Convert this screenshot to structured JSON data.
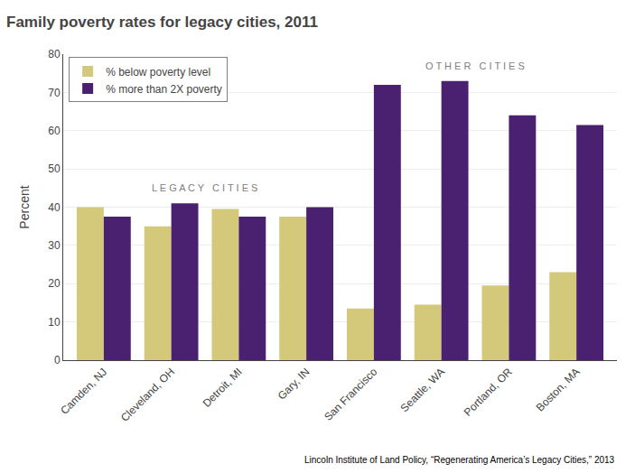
{
  "chart_data": {
    "type": "bar",
    "title": "Family poverty rates for legacy cities, 2011",
    "ylabel": "Percent",
    "categories": [
      "Camden, NJ",
      "Cleveland, OH",
      "Detroit, MI",
      "Gary, IN",
      "San Francisco",
      "Seattle, WA",
      "Portland, OR",
      "Boston, MA"
    ],
    "series": [
      {
        "name": "% below poverty level",
        "color": "#d4c97a",
        "values": [
          40,
          35,
          39.5,
          37.5,
          13.5,
          14.5,
          19.5,
          23
        ]
      },
      {
        "name": "% more than 2X poverty",
        "color": "#4a2070",
        "values": [
          37.5,
          41,
          37.5,
          40,
          72,
          73,
          64,
          61.5
        ]
      }
    ],
    "ylim": [
      0,
      80
    ],
    "yticks": [
      0,
      10,
      20,
      30,
      40,
      50,
      60,
      70,
      80
    ],
    "grid": true,
    "legend": "upper left",
    "annotations": [
      "L E G A C Y   C I T I E S",
      "O T H E R   C I T I E S"
    ],
    "footnote": "Lincoln Institute of Land Policy, “Regenerating America’s Legacy Cities,” 2013"
  }
}
